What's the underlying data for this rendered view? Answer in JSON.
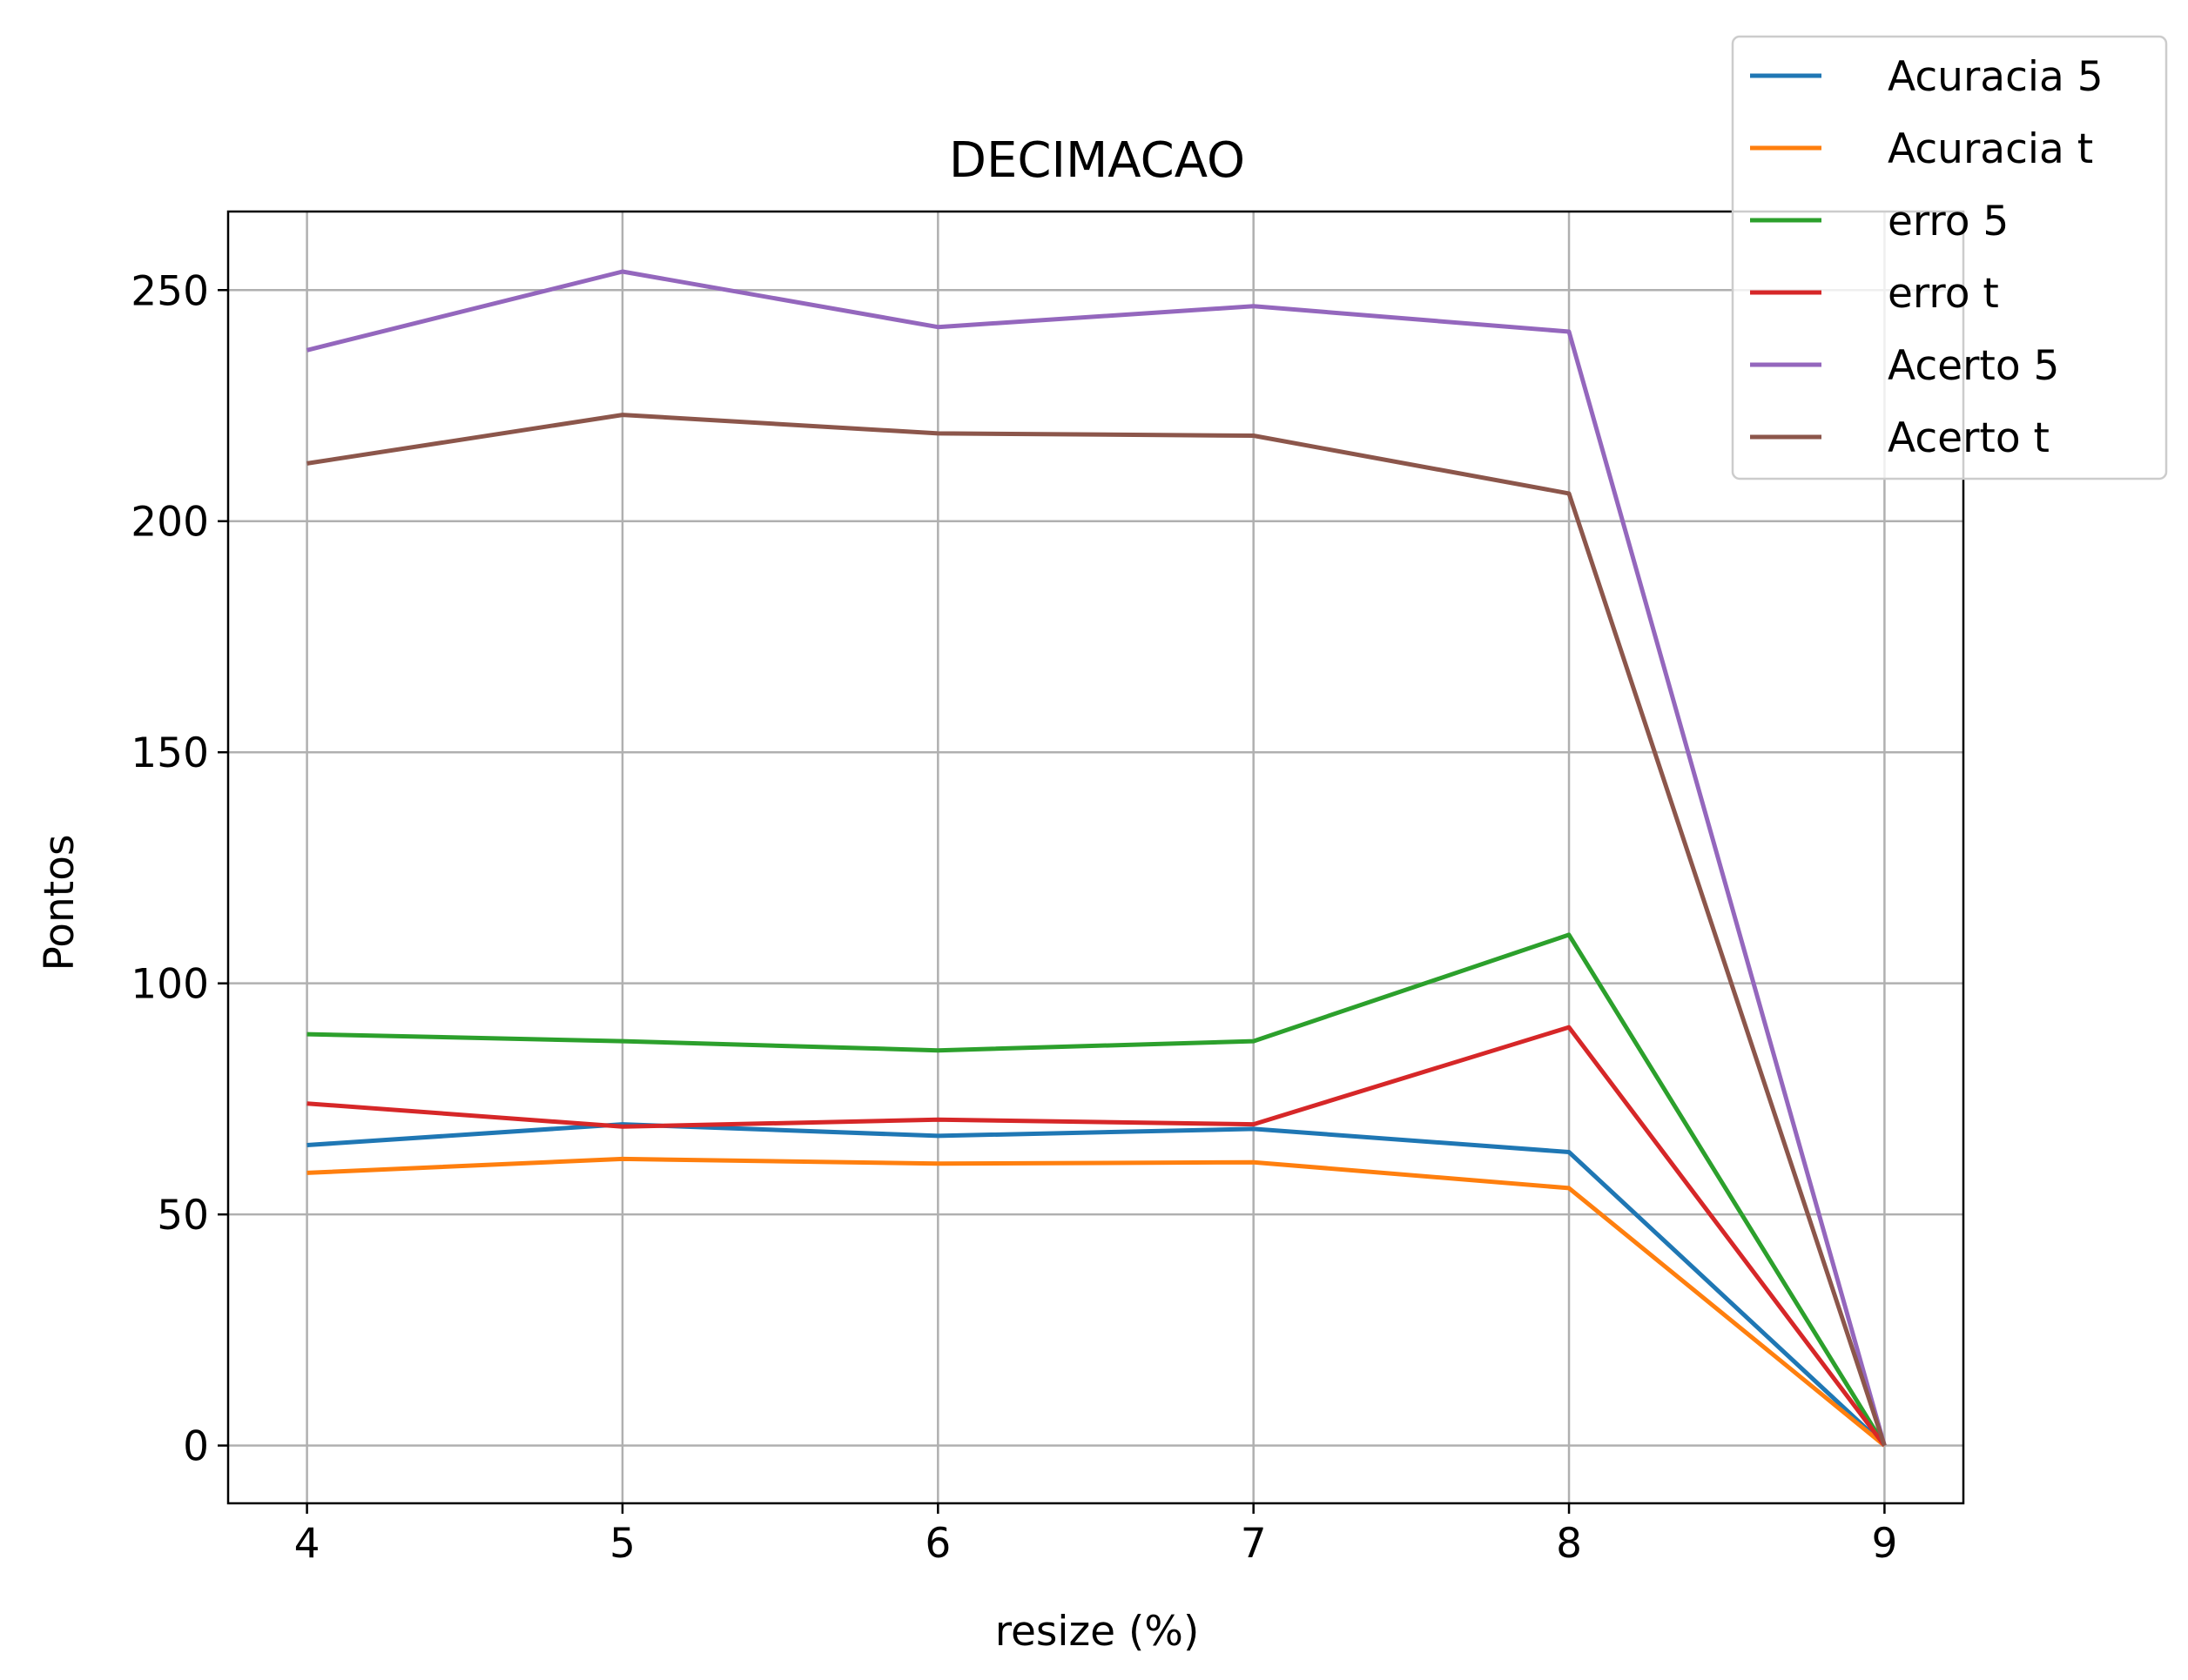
{
  "chart_data": {
    "type": "line",
    "title": "DECIMACAO",
    "xlabel": "resize (%)",
    "ylabel": "Pontos",
    "x": [
      4,
      5,
      6,
      7,
      8,
      9
    ],
    "xlim": [
      3.75,
      9.25
    ],
    "ylim": [
      -12.5,
      267
    ],
    "xticks": [
      4,
      5,
      6,
      7,
      8,
      9
    ],
    "yticks": [
      0,
      50,
      100,
      150,
      200,
      250
    ],
    "grid": true,
    "legend_position": "top-right",
    "series": [
      {
        "name": "Acuracia 5",
        "color": "#1f77b4",
        "values": [
          65,
          69.5,
          67,
          68.5,
          63.5,
          0
        ]
      },
      {
        "name": "Acuracia t",
        "color": "#ff7f0e",
        "values": [
          59,
          62,
          61,
          61.3,
          55.7,
          0
        ]
      },
      {
        "name": "erro 5",
        "color": "#2ca02c",
        "values": [
          89,
          87.5,
          85.5,
          87.5,
          110.5,
          0
        ]
      },
      {
        "name": "erro t",
        "color": "#d62728",
        "values": [
          74,
          69,
          70.5,
          69.5,
          90.5,
          0
        ]
      },
      {
        "name": "Acerto 5",
        "color": "#9467bd",
        "values": [
          237,
          254,
          242,
          246.5,
          241,
          0
        ]
      },
      {
        "name": "Acerto t",
        "color": "#8c564b",
        "values": [
          212.5,
          223,
          219,
          218.5,
          206,
          0
        ]
      }
    ]
  }
}
